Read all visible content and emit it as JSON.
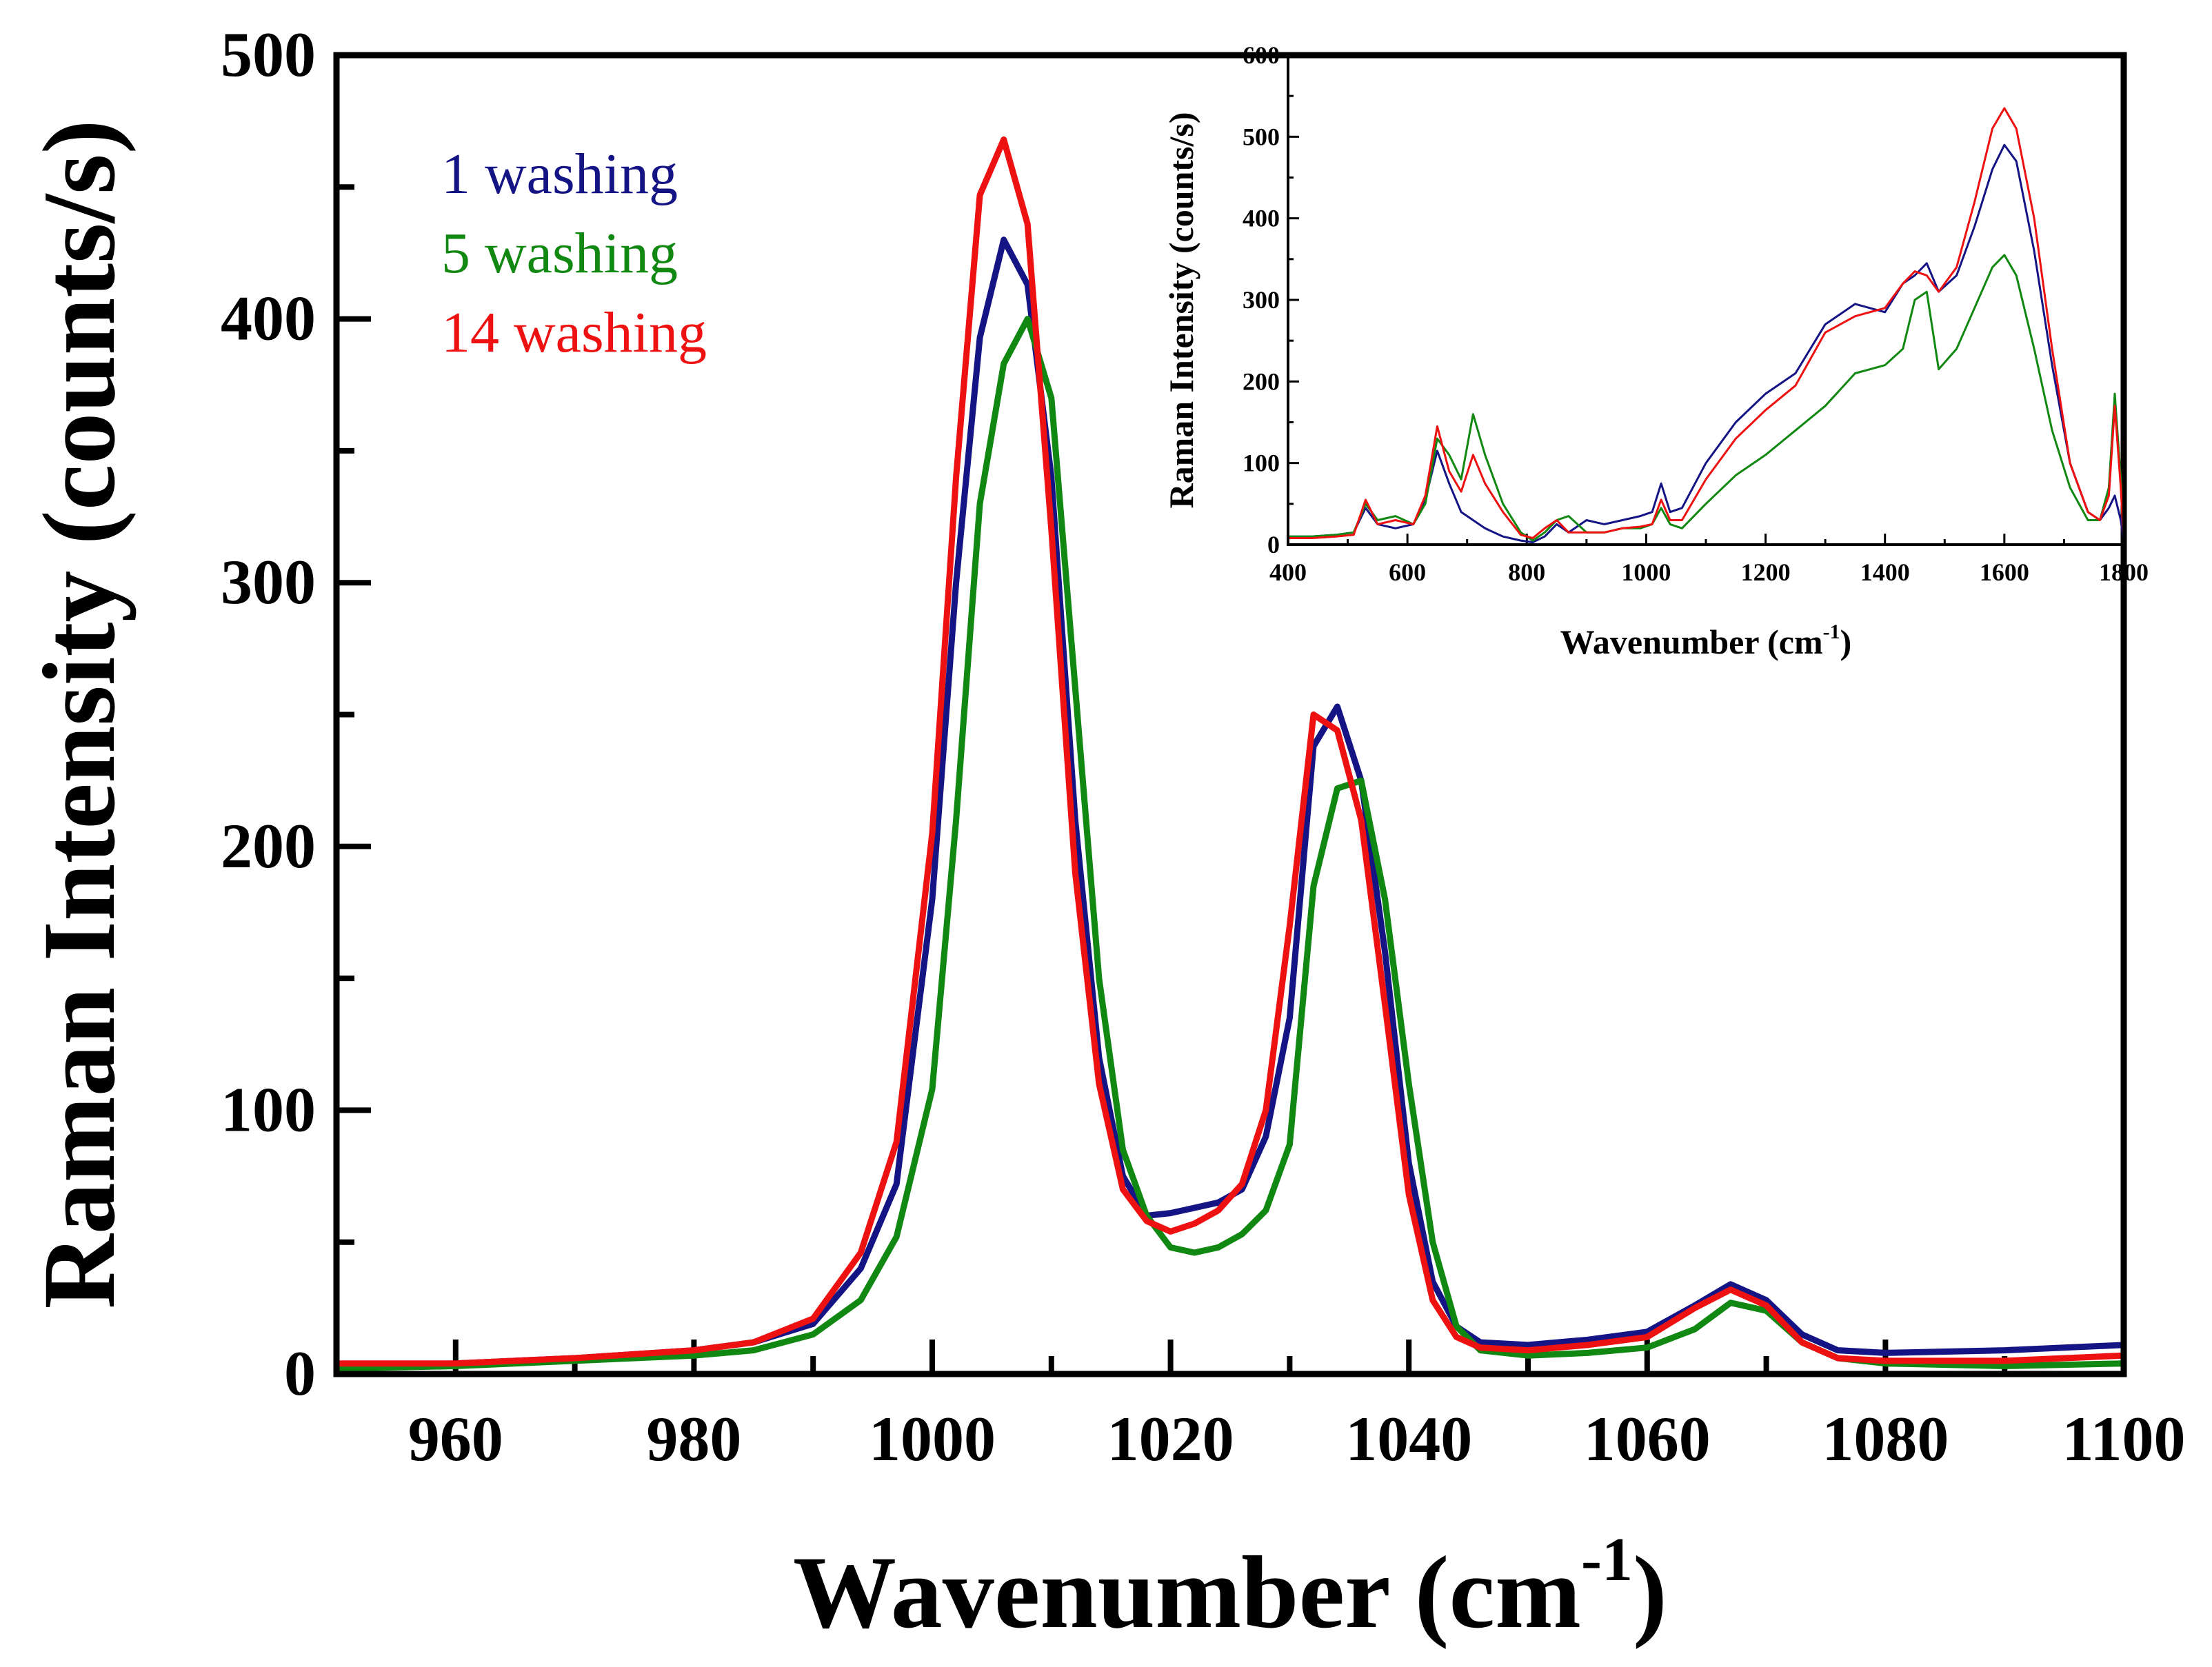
{
  "chart_data": [
    {
      "type": "line",
      "role": "main",
      "title": "",
      "xlabel": "Wavenumber (cm",
      "xlabel_sup": "-1",
      "xlabel_close": ")",
      "ylabel": "Raman Intensity (counts/s)",
      "xlim": [
        950,
        1100
      ],
      "ylim": [
        0,
        500
      ],
      "xticks": [
        960,
        980,
        1000,
        1020,
        1040,
        1060,
        1080,
        1100
      ],
      "xtick_labels": [
        "960",
        "980",
        "1000",
        "1020",
        "1040",
        "1060",
        "1080",
        "1100"
      ],
      "yticks": [
        0,
        100,
        200,
        300,
        400,
        500
      ],
      "ytick_labels": [
        "0",
        "100",
        "200",
        "300",
        "400",
        "500"
      ],
      "legend": "top-left",
      "x": [
        950,
        960,
        970,
        980,
        985,
        990,
        994,
        997,
        1000,
        1002,
        1004,
        1006,
        1008,
        1010,
        1012,
        1014,
        1016,
        1018,
        1020,
        1022,
        1024,
        1026,
        1028,
        1030,
        1032,
        1034,
        1036,
        1038,
        1040,
        1042,
        1044,
        1046,
        1050,
        1055,
        1060,
        1064,
        1067,
        1070,
        1073,
        1076,
        1080,
        1090,
        1100
      ],
      "series": [
        {
          "name": "1 washing",
          "color": "#141485",
          "values": [
            3,
            4,
            6,
            9,
            12,
            19,
            40,
            72,
            180,
            300,
            393,
            430,
            413,
            340,
            210,
            120,
            75,
            60,
            61,
            63,
            65,
            70,
            90,
            135,
            238,
            253,
            225,
            160,
            80,
            35,
            18,
            12,
            11,
            13,
            16,
            26,
            34,
            28,
            15,
            9,
            8,
            9,
            11
          ]
        },
        {
          "name": "5 washing",
          "color": "#118811",
          "values": [
            2,
            3,
            5,
            7,
            9,
            15,
            28,
            52,
            108,
            210,
            330,
            383,
            400,
            370,
            260,
            150,
            85,
            60,
            48,
            46,
            48,
            53,
            62,
            87,
            185,
            222,
            225,
            180,
            110,
            50,
            18,
            9,
            7,
            8,
            10,
            17,
            27,
            24,
            12,
            6,
            4,
            3,
            4
          ]
        },
        {
          "name": "14 washing",
          "color": "#ee1111",
          "values": [
            4,
            4,
            6,
            9,
            12,
            21,
            46,
            88,
            205,
            340,
            447,
            468,
            436,
            320,
            190,
            110,
            70,
            58,
            54,
            57,
            62,
            72,
            100,
            170,
            250,
            244,
            210,
            140,
            68,
            28,
            14,
            10,
            9,
            11,
            14,
            25,
            32,
            26,
            12,
            6,
            5,
            5,
            7
          ]
        }
      ]
    },
    {
      "type": "line",
      "role": "inset",
      "title": "",
      "xlabel": "Wavenumber (cm",
      "xlabel_sup": "-1",
      "xlabel_close": ")",
      "ylabel": "Raman Intensity (counts/s)",
      "xlim": [
        400,
        1800
      ],
      "ylim": [
        0,
        600
      ],
      "xticks": [
        400,
        600,
        800,
        1000,
        1200,
        1400,
        1600,
        1800
      ],
      "xtick_labels": [
        "400",
        "600",
        "800",
        "1000",
        "1200",
        "1400",
        "1600",
        "1800"
      ],
      "yticks": [
        0,
        100,
        200,
        300,
        400,
        500,
        600
      ],
      "ytick_labels": [
        "0",
        "100",
        "200",
        "300",
        "400",
        "500",
        "600"
      ],
      "x": [
        400,
        440,
        480,
        510,
        530,
        550,
        580,
        610,
        630,
        650,
        670,
        690,
        710,
        730,
        760,
        790,
        810,
        830,
        850,
        870,
        900,
        930,
        960,
        990,
        1010,
        1025,
        1040,
        1060,
        1100,
        1150,
        1200,
        1250,
        1300,
        1350,
        1400,
        1430,
        1450,
        1470,
        1490,
        1520,
        1550,
        1580,
        1600,
        1620,
        1650,
        1680,
        1710,
        1740,
        1760,
        1775,
        1785,
        1795,
        1800
      ],
      "series": [
        {
          "name": "1 washing",
          "color": "#141485",
          "values": [
            10,
            10,
            12,
            15,
            45,
            25,
            20,
            25,
            55,
            115,
            75,
            40,
            30,
            20,
            10,
            5,
            3,
            10,
            25,
            15,
            30,
            25,
            30,
            35,
            40,
            75,
            40,
            45,
            100,
            150,
            185,
            210,
            270,
            295,
            285,
            320,
            330,
            345,
            310,
            330,
            390,
            460,
            490,
            470,
            360,
            220,
            100,
            40,
            30,
            45,
            60,
            30,
            5
          ]
        },
        {
          "name": "5 washing",
          "color": "#118811",
          "values": [
            10,
            10,
            12,
            15,
            50,
            30,
            35,
            25,
            50,
            130,
            110,
            80,
            160,
            110,
            50,
            15,
            5,
            15,
            30,
            35,
            15,
            15,
            20,
            20,
            25,
            45,
            25,
            20,
            50,
            85,
            110,
            140,
            170,
            210,
            220,
            240,
            300,
            310,
            215,
            240,
            290,
            340,
            355,
            330,
            240,
            140,
            70,
            30,
            30,
            70,
            185,
            80,
            5
          ]
        },
        {
          "name": "14 washing",
          "color": "#ee1111",
          "values": [
            8,
            8,
            10,
            12,
            55,
            25,
            30,
            25,
            60,
            145,
            90,
            65,
            110,
            75,
            40,
            12,
            8,
            20,
            30,
            15,
            15,
            15,
            20,
            22,
            25,
            55,
            30,
            30,
            80,
            130,
            165,
            195,
            260,
            280,
            290,
            320,
            335,
            330,
            310,
            340,
            420,
            510,
            535,
            510,
            400,
            240,
            100,
            40,
            30,
            60,
            170,
            70,
            5
          ]
        }
      ]
    }
  ]
}
